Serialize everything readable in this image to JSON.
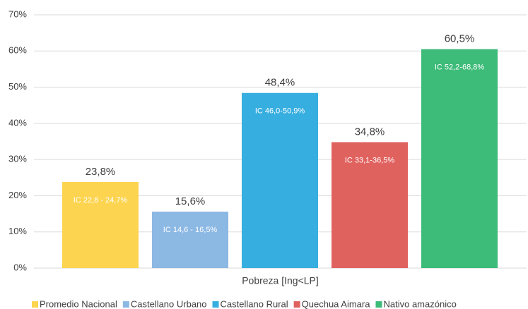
{
  "chart_data": {
    "type": "bar",
    "categories": [
      "Pobreza  [Ing<LP]"
    ],
    "series": [
      {
        "name": "Promedio Nacional",
        "color": "#fcd450",
        "values": [
          23.8
        ],
        "value_labels": [
          "23,8%"
        ],
        "interval_labels": [
          "IC 22,8 - 24,7%"
        ]
      },
      {
        "name": "Castellano Urbano",
        "color": "#8cb8e4",
        "values": [
          15.6
        ],
        "value_labels": [
          "15,6%"
        ],
        "interval_labels": [
          "IC 14,6 - 16,5%"
        ]
      },
      {
        "name": "Castellano Rural",
        "color": "#37aee0",
        "values": [
          48.4
        ],
        "value_labels": [
          "48,4%"
        ],
        "interval_labels": [
          "IC 46,0-50,9%"
        ]
      },
      {
        "name": "Quechua Aimara",
        "color": "#e0625f",
        "values": [
          34.8
        ],
        "value_labels": [
          "34,8%"
        ],
        "interval_labels": [
          "IC 33,1-36,5%"
        ]
      },
      {
        "name": "Nativo amazónico",
        "color": "#3dbb78",
        "values": [
          60.5
        ],
        "value_labels": [
          "60,5%"
        ],
        "interval_labels": [
          "IC 52,2-68,8%"
        ]
      }
    ],
    "ylim": [
      0,
      70
    ],
    "yticks": [
      {
        "value": 0,
        "label": "0%"
      },
      {
        "value": 10,
        "label": "10%"
      },
      {
        "value": 20,
        "label": "20%"
      },
      {
        "value": 30,
        "label": "30%"
      },
      {
        "value": 40,
        "label": "40%"
      },
      {
        "value": 50,
        "label": "50%"
      },
      {
        "value": 60,
        "label": "60%"
      },
      {
        "value": 70,
        "label": "70%"
      }
    ],
    "grid": true,
    "legend": "bottom"
  }
}
